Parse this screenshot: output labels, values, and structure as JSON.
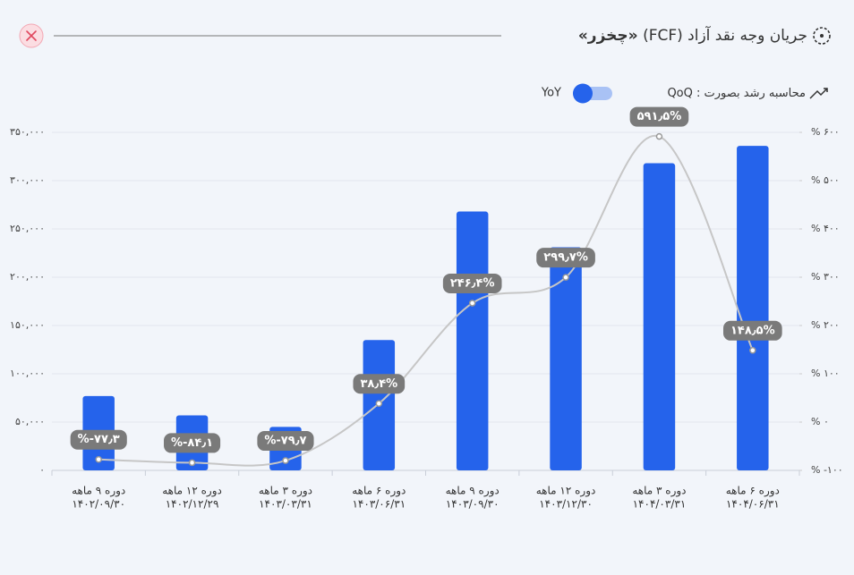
{
  "chart_data": {
    "type": "bar",
    "title": "جریان وجه نقد آزاد (FCF)",
    "symbol": "«چخزر»",
    "growth_label": "محاسبه رشد بصورت :",
    "growth_options": [
      "QoQ",
      "YoY"
    ],
    "categories": [
      "دوره ۹ ماهه",
      "دوره ۱۲ ماهه",
      "دوره ۳ ماهه",
      "دوره ۶ ماهه",
      "دوره ۹ ماهه",
      "دوره ۱۲ ماهه",
      "دوره ۳ ماهه",
      "دوره ۶ ماهه"
    ],
    "category_dates": [
      "۱۴۰۲/۰۹/۳۰",
      "۱۴۰۲/۱۲/۲۹",
      "۱۴۰۳/۰۳/۳۱",
      "۱۴۰۳/۰۶/۳۱",
      "۱۴۰۳/۰۹/۳۰",
      "۱۴۰۳/۱۲/۳۰",
      "۱۴۰۴/۰۳/۳۱",
      "۱۴۰۴/۰۶/۳۱"
    ],
    "series": [
      {
        "type": "bar",
        "color": "#2563eb",
        "values": [
          77000,
          57000,
          45000,
          135000,
          268000,
          231000,
          318000,
          336000
        ]
      },
      {
        "type": "line",
        "axis": "y2",
        "color": "#c6c6c6",
        "values": [
          -77.3,
          -84.1,
          -79.7,
          38.4,
          246.4,
          299.7,
          591.5,
          148.5
        ],
        "value_labels": [
          "%-۷۷٫۳",
          "%-۸۴٫۱",
          "%-۷۹٫۷",
          "۳۸٫۴%",
          "۲۴۶٫۴%",
          "۲۹۹٫۷%",
          "۵۹۱٫۵%",
          "۱۴۸٫۵%"
        ]
      }
    ],
    "ylim": [
      0,
      350000
    ],
    "yticks": [
      {
        "value": 0,
        "label": "۰"
      },
      {
        "value": 50000,
        "label": "۵۰,۰۰۰"
      },
      {
        "value": 100000,
        "label": "۱۰۰,۰۰۰"
      },
      {
        "value": 150000,
        "label": "۱۵۰,۰۰۰"
      },
      {
        "value": 200000,
        "label": "۲۰۰,۰۰۰"
      },
      {
        "value": 250000,
        "label": "۲۵۰,۰۰۰"
      },
      {
        "value": 300000,
        "label": "۳۰۰,۰۰۰"
      },
      {
        "value": 350000,
        "label": "۳۵۰,۰۰۰"
      }
    ],
    "y2lim": [
      -100,
      600
    ],
    "y2ticks": [
      {
        "value": -100,
        "label": "% -۱۰۰"
      },
      {
        "value": 0,
        "label": "% ۰"
      },
      {
        "value": 100,
        "label": "% ۱۰۰"
      },
      {
        "value": 200,
        "label": "% ۲۰۰"
      },
      {
        "value": 300,
        "label": "% ۳۰۰"
      },
      {
        "value": 400,
        "label": "% ۴۰۰"
      },
      {
        "value": 500,
        "label": "% ۵۰۰"
      },
      {
        "value": 600,
        "label": "% ۶۰۰"
      }
    ],
    "grid": true
  }
}
